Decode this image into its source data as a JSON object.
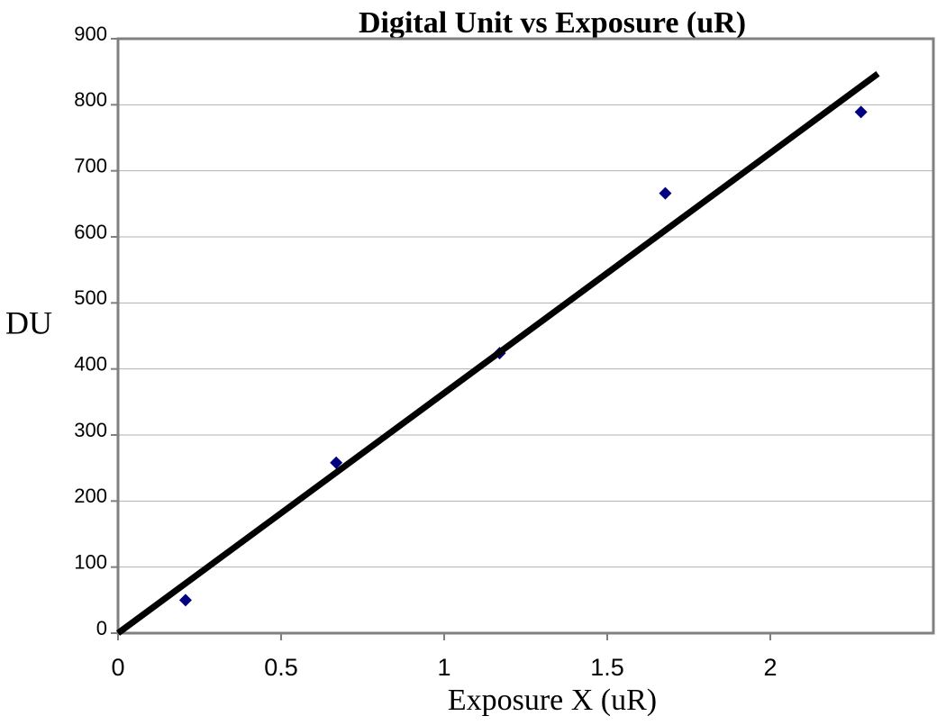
{
  "chart_data": {
    "type": "scatter",
    "title": "Digital Unit vs Exposure (uR)",
    "x_label": "Exposure X (uR)",
    "y_label": "DU",
    "x": [
      0.207,
      0.669,
      1.17,
      1.678,
      2.278
    ],
    "series": [
      {
        "color": "#000080",
        "values": [
          50,
          258,
          424,
          666,
          789
        ]
      }
    ],
    "trendline": {
      "color": "#000000",
      "x": [
        0,
        2.33
      ],
      "y": [
        0,
        847
      ]
    },
    "xlim": [
      0,
      2.5
    ],
    "xticks": [
      0,
      0.5,
      1,
      1.5,
      2
    ],
    "ylim": [
      0,
      900
    ],
    "yticks": [
      0,
      100,
      200,
      300,
      400,
      500,
      600,
      700,
      800,
      900
    ],
    "grid": true
  }
}
